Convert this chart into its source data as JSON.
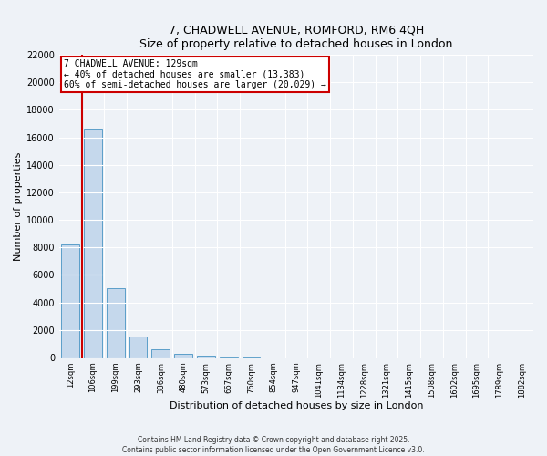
{
  "title_line1": "7, CHADWELL AVENUE, ROMFORD, RM6 4QH",
  "title_line2": "Size of property relative to detached houses in London",
  "xlabel": "Distribution of detached houses by size in London",
  "ylabel": "Number of properties",
  "annotation_title": "7 CHADWELL AVENUE: 129sqm",
  "annotation_line1": "← 40% of detached houses are smaller (13,383)",
  "annotation_line2": "60% of semi-detached houses are larger (20,029) →",
  "property_size": 129,
  "property_bin_index": 1,
  "footer_line1": "Contains HM Land Registry data © Crown copyright and database right 2025.",
  "footer_line2": "Contains public sector information licensed under the Open Government Licence v3.0.",
  "bar_color": "#c5d8ec",
  "bar_edge_color": "#5b9ec9",
  "vline_color": "#cc0000",
  "annotation_box_color": "#cc0000",
  "annotation_bg": "#ffffff",
  "background_color": "#eef2f7",
  "grid_color": "#ffffff",
  "categories": [
    "12sqm",
    "106sqm",
    "199sqm",
    "293sqm",
    "386sqm",
    "480sqm",
    "573sqm",
    "667sqm",
    "760sqm",
    "854sqm",
    "947sqm",
    "1041sqm",
    "1134sqm",
    "1228sqm",
    "1321sqm",
    "1415sqm",
    "1508sqm",
    "1602sqm",
    "1695sqm",
    "1789sqm",
    "1882sqm"
  ],
  "values": [
    8200,
    16600,
    5000,
    1500,
    600,
    280,
    130,
    70,
    30,
    0,
    0,
    0,
    0,
    0,
    0,
    0,
    0,
    0,
    0,
    0,
    0
  ],
  "ylim": [
    0,
    22000
  ],
  "yticks": [
    0,
    2000,
    4000,
    6000,
    8000,
    10000,
    12000,
    14000,
    16000,
    18000,
    20000,
    22000
  ]
}
